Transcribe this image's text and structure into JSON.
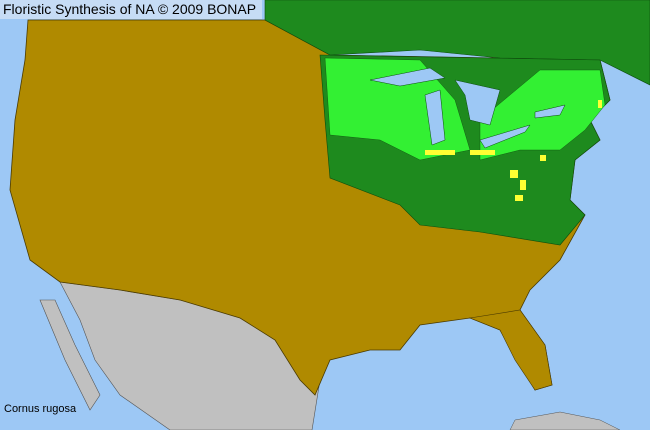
{
  "header": {
    "title": "Floristic Synthesis of NA © 2009 BONAP"
  },
  "map": {
    "species": "Cornus rugosa",
    "colors": {
      "ocean": "#9dc8f5",
      "species_absent_state": "#b08a00",
      "species_present_state": "#1e8a1e",
      "species_present_county": "#33f033",
      "rare_county": "#ffff33",
      "outside_area": "#c0c0c0",
      "county_lines": "#4a3a00"
    }
  }
}
